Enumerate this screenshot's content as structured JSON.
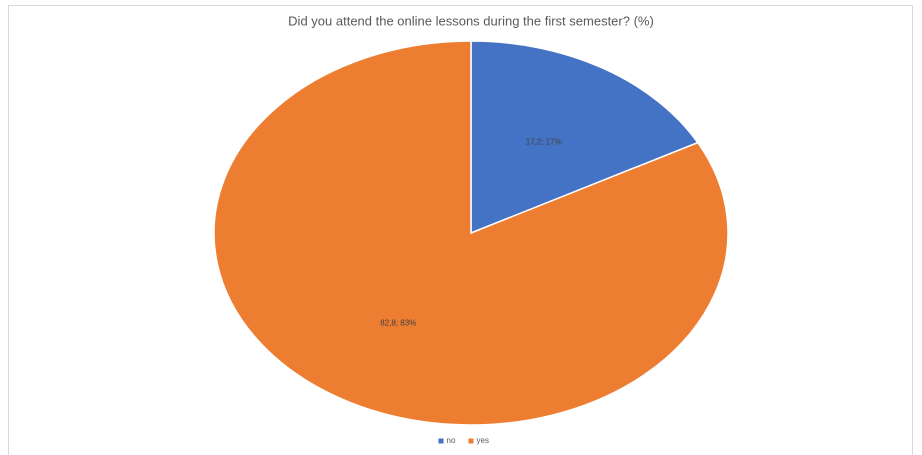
{
  "chart_data": {
    "type": "pie",
    "title": "Did you attend the online lessons during the first semester? (%)",
    "categories": [
      "no",
      "yes"
    ],
    "values": [
      17.2,
      82.8
    ],
    "value_labels": [
      "17,2; 17%",
      "82,8; 83%"
    ],
    "colors": [
      "#4472c4",
      "#ed7d31"
    ],
    "legend": "bottom"
  }
}
